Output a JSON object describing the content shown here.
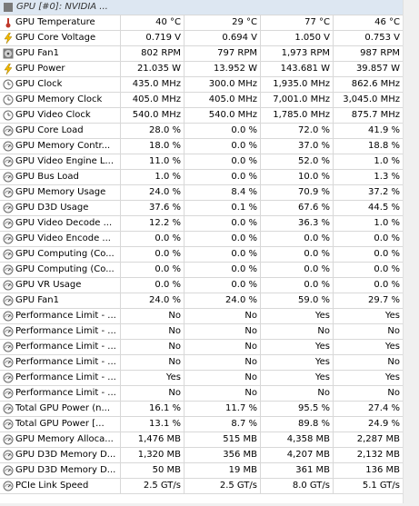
{
  "header": {
    "title": "GPU [#0]: NVIDIA ..."
  },
  "rows": [
    {
      "icon": "thermometer-icon",
      "label": "GPU Temperature",
      "v": [
        "40 °C",
        "29 °C",
        "77 °C",
        "46 °C"
      ]
    },
    {
      "icon": "lightning-icon",
      "label": "GPU Core Voltage",
      "v": [
        "0.719 V",
        "0.694 V",
        "1.050 V",
        "0.753 V"
      ]
    },
    {
      "icon": "fan-icon",
      "label": "GPU Fan1",
      "v": [
        "802 RPM",
        "797 RPM",
        "1,973 RPM",
        "987 RPM"
      ]
    },
    {
      "icon": "lightning-icon",
      "label": "GPU Power",
      "v": [
        "21.035 W",
        "13.952 W",
        "143.681 W",
        "39.857 W"
      ]
    },
    {
      "icon": "clock-icon",
      "label": "GPU Clock",
      "v": [
        "435.0 MHz",
        "300.0 MHz",
        "1,935.0 MHz",
        "862.6 MHz"
      ]
    },
    {
      "icon": "clock-icon",
      "label": "GPU Memory Clock",
      "v": [
        "405.0 MHz",
        "405.0 MHz",
        "7,001.0 MHz",
        "3,045.0 MHz"
      ]
    },
    {
      "icon": "clock-icon",
      "label": "GPU Video Clock",
      "v": [
        "540.0 MHz",
        "540.0 MHz",
        "1,785.0 MHz",
        "875.7 MHz"
      ]
    },
    {
      "icon": "gauge-icon",
      "label": "GPU Core Load",
      "v": [
        "28.0 %",
        "0.0 %",
        "72.0 %",
        "41.9 %"
      ]
    },
    {
      "icon": "gauge-icon",
      "label": "GPU Memory Contr...",
      "v": [
        "18.0 %",
        "0.0 %",
        "37.0 %",
        "18.8 %"
      ]
    },
    {
      "icon": "gauge-icon",
      "label": "GPU Video Engine L...",
      "v": [
        "11.0 %",
        "0.0 %",
        "52.0 %",
        "1.0 %"
      ]
    },
    {
      "icon": "gauge-icon",
      "label": "GPU Bus Load",
      "v": [
        "1.0 %",
        "0.0 %",
        "10.0 %",
        "1.3 %"
      ]
    },
    {
      "icon": "gauge-icon",
      "label": "GPU Memory Usage",
      "v": [
        "24.0 %",
        "8.4 %",
        "70.9 %",
        "37.2 %"
      ]
    },
    {
      "icon": "gauge-icon",
      "label": "GPU D3D Usage",
      "v": [
        "37.6 %",
        "0.1 %",
        "67.6 %",
        "44.5 %"
      ]
    },
    {
      "icon": "gauge-icon",
      "label": "GPU Video Decode ...",
      "v": [
        "12.2 %",
        "0.0 %",
        "36.3 %",
        "1.0 %"
      ]
    },
    {
      "icon": "gauge-icon",
      "label": "GPU Video Encode ...",
      "v": [
        "0.0 %",
        "0.0 %",
        "0.0 %",
        "0.0 %"
      ]
    },
    {
      "icon": "gauge-icon",
      "label": "GPU Computing (Co...",
      "v": [
        "0.0 %",
        "0.0 %",
        "0.0 %",
        "0.0 %"
      ]
    },
    {
      "icon": "gauge-icon",
      "label": "GPU Computing (Co...",
      "v": [
        "0.0 %",
        "0.0 %",
        "0.0 %",
        "0.0 %"
      ]
    },
    {
      "icon": "gauge-icon",
      "label": "GPU VR Usage",
      "v": [
        "0.0 %",
        "0.0 %",
        "0.0 %",
        "0.0 %"
      ]
    },
    {
      "icon": "gauge-icon",
      "label": "GPU Fan1",
      "v": [
        "24.0 %",
        "24.0 %",
        "59.0 %",
        "29.7 %"
      ]
    },
    {
      "icon": "gauge-icon",
      "label": "Performance Limit - ...",
      "v": [
        "No",
        "No",
        "Yes",
        "Yes"
      ]
    },
    {
      "icon": "gauge-icon",
      "label": "Performance Limit - ...",
      "v": [
        "No",
        "No",
        "No",
        "No"
      ]
    },
    {
      "icon": "gauge-icon",
      "label": "Performance Limit - ...",
      "v": [
        "No",
        "No",
        "Yes",
        "Yes"
      ]
    },
    {
      "icon": "gauge-icon",
      "label": "Performance Limit - ...",
      "v": [
        "No",
        "No",
        "Yes",
        "No"
      ]
    },
    {
      "icon": "gauge-icon",
      "label": "Performance Limit - ...",
      "v": [
        "Yes",
        "No",
        "Yes",
        "Yes"
      ]
    },
    {
      "icon": "gauge-icon",
      "label": "Performance Limit - ...",
      "v": [
        "No",
        "No",
        "No",
        "No"
      ]
    },
    {
      "icon": "gauge-icon",
      "label": "Total GPU Power (n...",
      "v": [
        "16.1 %",
        "11.7 %",
        "95.5 %",
        "27.4 %"
      ]
    },
    {
      "icon": "gauge-icon",
      "label": "Total GPU Power [...",
      "v": [
        "13.1 %",
        "8.7 %",
        "89.8 %",
        "24.9 %"
      ]
    },
    {
      "icon": "gauge-icon",
      "label": "GPU Memory Alloca...",
      "v": [
        "1,476 MB",
        "515 MB",
        "4,358 MB",
        "2,287 MB"
      ]
    },
    {
      "icon": "gauge-icon",
      "label": "GPU D3D Memory D...",
      "v": [
        "1,320 MB",
        "356 MB",
        "4,207 MB",
        "2,132 MB"
      ]
    },
    {
      "icon": "gauge-icon",
      "label": "GPU D3D Memory D...",
      "v": [
        "50 MB",
        "19 MB",
        "361 MB",
        "136 MB"
      ]
    },
    {
      "icon": "gauge-icon",
      "label": "PCIe Link Speed",
      "v": [
        "2.5 GT/s",
        "2.5 GT/s",
        "8.0 GT/s",
        "5.1 GT/s"
      ]
    }
  ]
}
